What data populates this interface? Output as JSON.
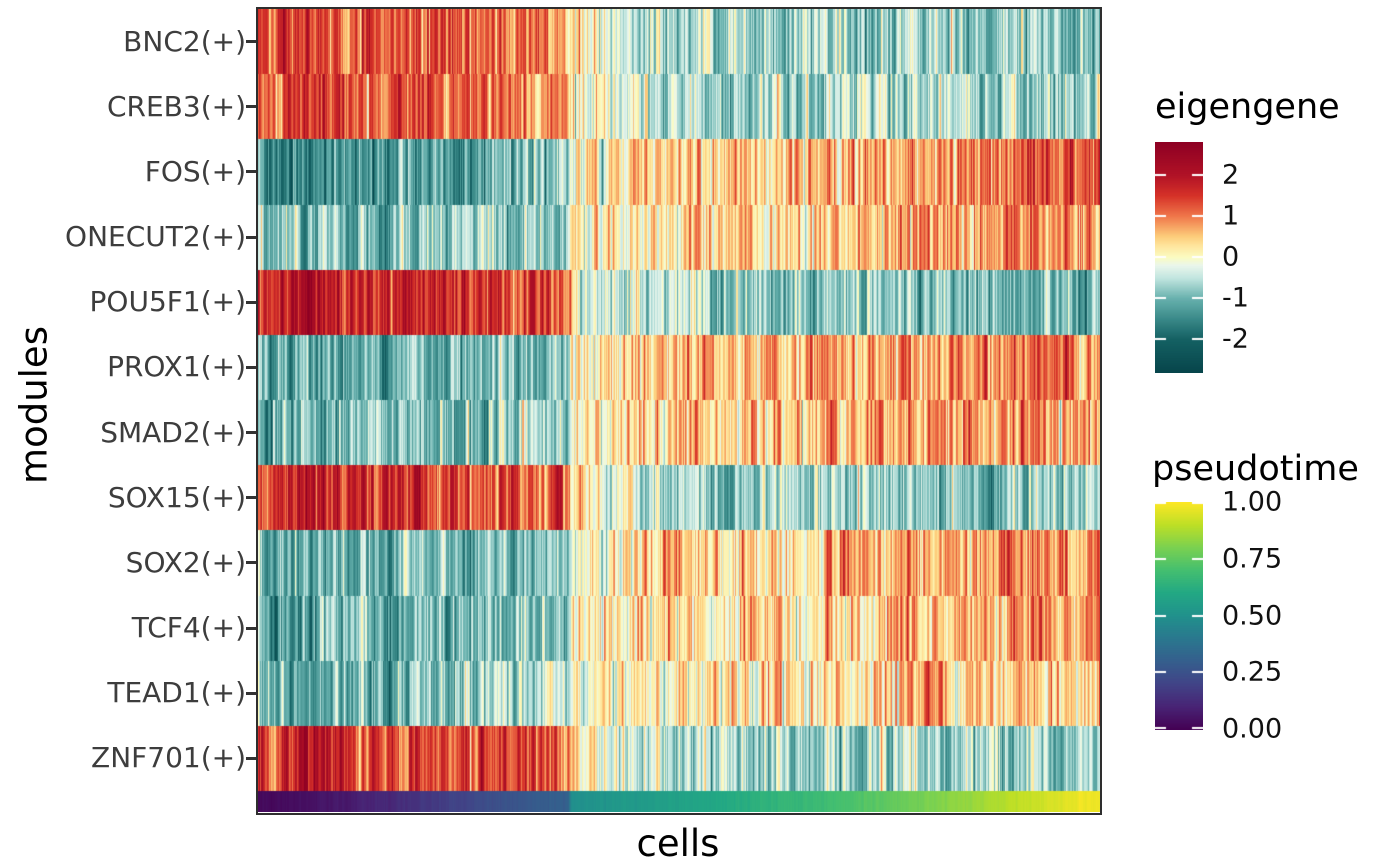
{
  "chart_data": {
    "type": "heatmap",
    "title": "",
    "xlabel": "cells",
    "ylabel": "modules",
    "x_description": "cells ordered by pseudotime from 0 (left) to 1 (right); columns are individual cells",
    "rows": [
      "BNC2(+)",
      "CREB3(+)",
      "FOS(+)",
      "ONECUT2(+)",
      "POU5F1(+)",
      "PROX1(+)",
      "SMAD2(+)",
      "SOX15(+)",
      "SOX2(+)",
      "TCF4(+)",
      "TEAD1(+)",
      "ZNF701(+)"
    ],
    "profile_x": [
      0,
      0.05,
      0.1,
      0.15,
      0.2,
      0.25,
      0.3,
      0.35,
      0.368,
      0.372,
      0.42,
      0.47,
      0.55,
      0.63,
      0.71,
      0.79,
      0.87,
      0.95,
      1.0
    ],
    "series": [
      {
        "name": "BNC2(+)",
        "values": [
          1.3,
          1.5,
          1.4,
          1.3,
          1.3,
          1.2,
          1.1,
          1.0,
          0.9,
          0.3,
          -0.2,
          -0.4,
          -0.6,
          -0.6,
          -0.7,
          -0.7,
          -0.8,
          -0.8,
          -0.8
        ]
      },
      {
        "name": "CREB3(+)",
        "values": [
          1.1,
          1.3,
          1.2,
          1.2,
          1.3,
          1.2,
          1.1,
          1.0,
          0.9,
          0.2,
          -0.3,
          -0.5,
          -0.6,
          -0.6,
          -0.6,
          -0.7,
          -0.7,
          -0.7,
          -0.7
        ]
      },
      {
        "name": "FOS(+)",
        "values": [
          -1.2,
          -1.5,
          -1.3,
          -1.2,
          -1.1,
          -1.2,
          -1.0,
          -0.9,
          -0.8,
          0.1,
          0.3,
          0.3,
          0.4,
          0.5,
          0.7,
          0.8,
          1.0,
          1.2,
          1.3
        ]
      },
      {
        "name": "ONECUT2(+)",
        "values": [
          -0.8,
          -0.9,
          -0.8,
          -0.9,
          -0.8,
          -0.8,
          -0.7,
          -0.6,
          -0.6,
          0.0,
          0.2,
          0.3,
          0.4,
          0.5,
          0.6,
          0.7,
          0.8,
          0.9,
          0.9
        ]
      },
      {
        "name": "POU5F1(+)",
        "values": [
          1.6,
          2.2,
          1.8,
          1.7,
          1.7,
          1.6,
          1.5,
          1.4,
          1.3,
          0.3,
          -0.3,
          -0.5,
          -0.7,
          -0.7,
          -0.8,
          -0.8,
          -0.8,
          -0.9,
          -0.9
        ]
      },
      {
        "name": "PROX1(+)",
        "values": [
          -1.0,
          -1.1,
          -1.0,
          -1.0,
          -0.9,
          -1.0,
          -0.9,
          -0.8,
          -0.7,
          0.1,
          0.4,
          0.5,
          0.6,
          0.7,
          0.8,
          0.9,
          0.9,
          1.0,
          1.1
        ]
      },
      {
        "name": "SMAD2(+)",
        "values": [
          -0.9,
          -1.0,
          -0.9,
          -0.9,
          -0.9,
          -0.8,
          -0.8,
          -0.7,
          -0.6,
          0.0,
          0.3,
          0.4,
          0.5,
          0.6,
          0.7,
          0.8,
          0.8,
          0.9,
          1.0
        ]
      },
      {
        "name": "SOX15(+)",
        "values": [
          1.4,
          1.9,
          1.6,
          1.5,
          1.5,
          1.4,
          1.3,
          1.2,
          1.1,
          0.3,
          -0.3,
          -0.5,
          -0.6,
          -0.6,
          -0.7,
          -0.7,
          -0.7,
          -0.8,
          -0.8
        ]
      },
      {
        "name": "SOX2(+)",
        "values": [
          -1.1,
          -1.2,
          -1.1,
          -1.1,
          -1.0,
          -1.0,
          -0.9,
          -0.8,
          -0.7,
          0.0,
          0.3,
          0.4,
          0.4,
          0.5,
          0.6,
          0.7,
          0.8,
          0.9,
          1.0
        ]
      },
      {
        "name": "TCF4(+)",
        "values": [
          -1.0,
          -1.1,
          -1.0,
          -1.0,
          -0.9,
          -0.9,
          -0.9,
          -0.8,
          -0.7,
          -0.1,
          0.2,
          0.3,
          0.3,
          0.4,
          0.5,
          0.6,
          0.7,
          0.8,
          0.9
        ]
      },
      {
        "name": "TEAD1(+)",
        "values": [
          -0.7,
          -1.3,
          -0.8,
          -0.8,
          -0.7,
          -0.7,
          -0.6,
          -0.5,
          -0.4,
          0.0,
          0.2,
          0.2,
          0.3,
          0.3,
          0.4,
          0.5,
          0.5,
          0.6,
          0.7
        ]
      },
      {
        "name": "ZNF701(+)",
        "values": [
          1.3,
          2.0,
          1.5,
          1.4,
          1.4,
          1.3,
          1.2,
          1.1,
          1.0,
          0.3,
          -0.2,
          -0.4,
          -0.5,
          -0.5,
          -0.6,
          -0.6,
          -0.7,
          -0.7,
          -0.7
        ]
      }
    ],
    "pseudotime_track": {
      "x": [
        0,
        0.1,
        0.2,
        0.3,
        0.368,
        0.372,
        0.5,
        0.65,
        0.8,
        0.9,
        1.0
      ],
      "values": [
        0.02,
        0.07,
        0.16,
        0.26,
        0.31,
        0.5,
        0.57,
        0.67,
        0.8,
        0.9,
        0.99
      ]
    },
    "eigengene_scale": {
      "title": "eigengene",
      "domain": [
        -2.8,
        2.8
      ],
      "ticks": [
        "2",
        "1",
        "0",
        "-1",
        "-2"
      ],
      "tick_values": [
        2,
        1,
        0,
        -1,
        -2
      ],
      "stops": [
        {
          "v": -2.8,
          "c": "#07454b"
        },
        {
          "v": -2.0,
          "c": "#146163"
        },
        {
          "v": -1.5,
          "c": "#3a8a89"
        },
        {
          "v": -1.0,
          "c": "#68b1ae"
        },
        {
          "v": -0.5,
          "c": "#c2e6e0"
        },
        {
          "v": -0.2,
          "c": "#eaf6ec"
        },
        {
          "v": 0.0,
          "c": "#fbfcc2"
        },
        {
          "v": 0.25,
          "c": "#fee9a2"
        },
        {
          "v": 0.5,
          "c": "#fdce7c"
        },
        {
          "v": 1.0,
          "c": "#f0774b"
        },
        {
          "v": 1.5,
          "c": "#d63228"
        },
        {
          "v": 2.0,
          "c": "#b11226"
        },
        {
          "v": 2.8,
          "c": "#8e0023"
        }
      ]
    },
    "pseudotime_scale": {
      "title": "pseudotime",
      "domain": [
        0,
        1
      ],
      "ticks": [
        "1.00",
        "0.75",
        "0.50",
        "0.25",
        "0.00"
      ],
      "tick_values": [
        1.0,
        0.75,
        0.5,
        0.25,
        0.0
      ],
      "stops": [
        {
          "t": 0.0,
          "c": "#440154"
        },
        {
          "t": 0.1,
          "c": "#482475"
        },
        {
          "t": 0.2,
          "c": "#414487"
        },
        {
          "t": 0.3,
          "c": "#355f8d"
        },
        {
          "t": 0.4,
          "c": "#2a788e"
        },
        {
          "t": 0.5,
          "c": "#21918c"
        },
        {
          "t": 0.6,
          "c": "#22a884"
        },
        {
          "t": 0.7,
          "c": "#44bf70"
        },
        {
          "t": 0.8,
          "c": "#7ad151"
        },
        {
          "t": 0.9,
          "c": "#bddf26"
        },
        {
          "t": 1.0,
          "c": "#fde725"
        }
      ]
    },
    "render_hints": {
      "seed": 7,
      "row_noise_sd": 0.42,
      "row_noise_persistence": 0.5,
      "col_noise_sd": 0.15,
      "col_noise_persistence": 0.35,
      "pt_noise_sd": 0.008,
      "pt_noise_persistence": 0.5,
      "panel_border_color": "#2e2e2e"
    }
  }
}
